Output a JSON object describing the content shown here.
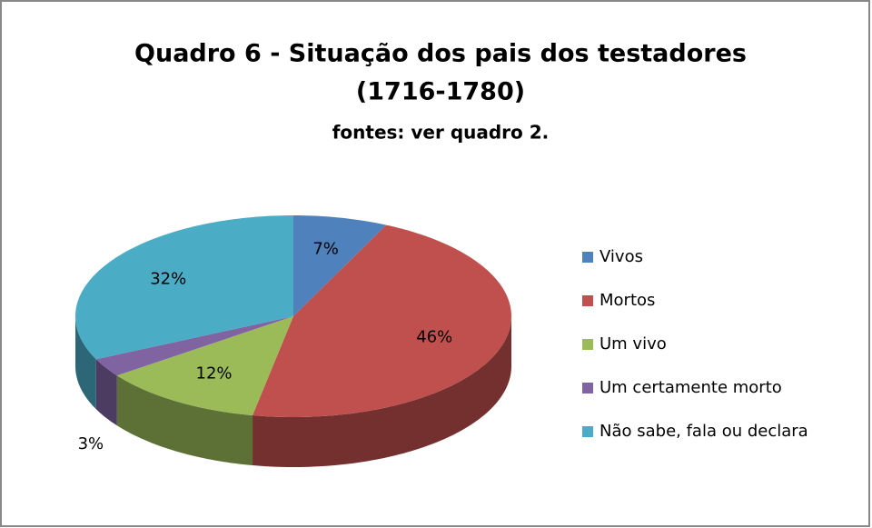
{
  "chart_data": {
    "type": "pie",
    "title": [
      "Quadro 6 - Situação dos pais dos testadores",
      "(1716-1780)"
    ],
    "subtitle": "fontes: ver quadro 2.",
    "categories": [
      "Vivos",
      "Mortos",
      "Um vivo",
      "Um certamente morto",
      "Não sabe, fala ou declara"
    ],
    "values": [
      7,
      46,
      12,
      3,
      32
    ],
    "value_labels": [
      "7%",
      "46%",
      "12%",
      "3%",
      "32%"
    ],
    "colors": [
      "#4f81bd",
      "#c0504d",
      "#9bbb59",
      "#8064a2",
      "#4bacc6"
    ],
    "legend": "right"
  }
}
